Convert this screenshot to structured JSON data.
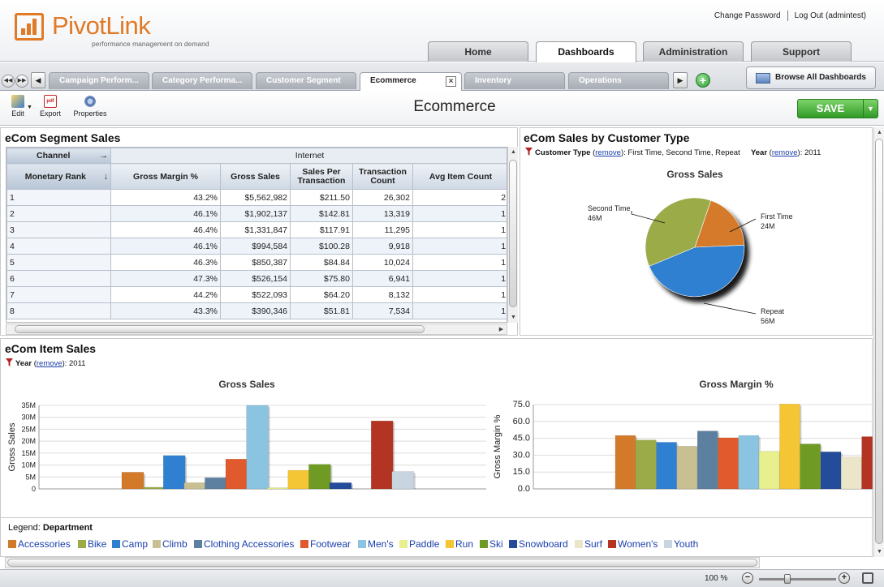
{
  "header": {
    "logo_text": "PivotLink",
    "logo_tagline": "performance management on demand",
    "change_password": "Change Password",
    "logout": "Log Out (admintest)",
    "main_tabs": [
      {
        "label": "Home",
        "active": false
      },
      {
        "label": "Dashboards",
        "active": true
      },
      {
        "label": "Administration",
        "active": false
      },
      {
        "label": "Support",
        "active": false
      }
    ]
  },
  "tabbar": {
    "tabs": [
      {
        "label": "Campaign Perform...",
        "active": false
      },
      {
        "label": "Category Performa...",
        "active": false
      },
      {
        "label": "Customer Segment",
        "active": false
      },
      {
        "label": "Ecommerce",
        "active": true
      },
      {
        "label": "Inventory",
        "active": false
      },
      {
        "label": "Operations",
        "active": false
      }
    ],
    "browse_label": "Browse All Dashboards"
  },
  "toolbar": {
    "edit": "Edit",
    "export": "Export",
    "export_badge": "pdf",
    "properties": "Properties",
    "page_title": "Ecommerce",
    "save": "SAVE"
  },
  "segment_sales": {
    "title": "eCom Segment Sales",
    "channel_label": "Channel",
    "channel_value": "Internet",
    "row_header": "Monetary Rank",
    "columns": [
      "Gross Margin %",
      "Gross Sales",
      "Sales Per Transaction",
      "Transaction Count",
      "Avg Item Count"
    ],
    "rows": [
      {
        "rank": "1",
        "cells": [
          "43.2%",
          "$5,562,982",
          "$211.50",
          "26,302",
          "2"
        ]
      },
      {
        "rank": "2",
        "cells": [
          "46.1%",
          "$1,902,137",
          "$142.81",
          "13,319",
          "1"
        ]
      },
      {
        "rank": "3",
        "cells": [
          "46.4%",
          "$1,331,847",
          "$117.91",
          "11,295",
          "1"
        ]
      },
      {
        "rank": "4",
        "cells": [
          "46.1%",
          "$994,584",
          "$100.28",
          "9,918",
          "1"
        ]
      },
      {
        "rank": "5",
        "cells": [
          "46.3%",
          "$850,387",
          "$84.84",
          "10,024",
          "1"
        ]
      },
      {
        "rank": "6",
        "cells": [
          "47.3%",
          "$526,154",
          "$75.80",
          "6,941",
          "1"
        ]
      },
      {
        "rank": "7",
        "cells": [
          "44.2%",
          "$522,093",
          "$64.20",
          "8,132",
          "1"
        ]
      },
      {
        "rank": "8",
        "cells": [
          "43.3%",
          "$390,346",
          "$51.81",
          "7,534",
          "1"
        ]
      }
    ]
  },
  "customer_type": {
    "title": "eCom Sales by Customer Type",
    "filter1_label": "Customer Type",
    "filter1_values": ": First Time, Second Time, Repeat",
    "filter2_label": "Year",
    "filter2_value": ": 2011",
    "remove": "remove"
  },
  "item_sales": {
    "title": "eCom Item Sales",
    "filter_label": "Year",
    "filter_value": ": 2011",
    "remove": "remove"
  },
  "legend": {
    "label": "Legend: ",
    "dimension": "Department",
    "items": [
      {
        "name": "Accessories",
        "color": "#d37a2a"
      },
      {
        "name": "Bike",
        "color": "#9aab48"
      },
      {
        "name": "Camp",
        "color": "#2f80d0"
      },
      {
        "name": "Climb",
        "color": "#c8c093"
      },
      {
        "name": "Clothing Accessories",
        "color": "#5d7fa0"
      },
      {
        "name": "Footwear",
        "color": "#e05a2d"
      },
      {
        "name": "Men's",
        "color": "#8ac4e0"
      },
      {
        "name": "Paddle",
        "color": "#e7ef8e"
      },
      {
        "name": "Run",
        "color": "#f4c534"
      },
      {
        "name": "Ski",
        "color": "#6f9b24"
      },
      {
        "name": "Snowboard",
        "color": "#254c9a"
      },
      {
        "name": "Surf",
        "color": "#ebe5c9"
      },
      {
        "name": "Women's",
        "color": "#b33422"
      },
      {
        "name": "Youth",
        "color": "#c8d4df"
      }
    ]
  },
  "statusbar": {
    "zoom": "100",
    "zoom_unit": "%"
  },
  "chart_data": [
    {
      "type": "pie",
      "title": "Gross Sales",
      "slices": [
        {
          "name": "First Time",
          "label": "24M",
          "value": 24,
          "color": "#d47a2a"
        },
        {
          "name": "Repeat",
          "label": "56M",
          "value": 56,
          "color": "#2f80d0"
        },
        {
          "name": "Second Time",
          "label": "46M",
          "value": 46,
          "color": "#9aab48"
        }
      ]
    },
    {
      "type": "bar",
      "title": "Gross Sales",
      "ylabel": "Gross Sales",
      "ylim": [
        0,
        35000000
      ],
      "yticks": [
        "0",
        "5M",
        "10M",
        "15M",
        "20M",
        "25M",
        "30M",
        "35M"
      ],
      "grid": true,
      "categories": [
        "Accessories",
        "Bike",
        "Camp",
        "Climb",
        "Clothing Accessories",
        "Footwear",
        "Men's",
        "Paddle",
        "Run",
        "Ski",
        "Snowboard",
        "Surf",
        "Women's",
        "Youth"
      ],
      "values": [
        7000000,
        700000,
        14000000,
        2600000,
        4700000,
        12500000,
        35000000,
        500000,
        7800000,
        10300000,
        2600000,
        0,
        28500000,
        7300000
      ]
    },
    {
      "type": "bar",
      "title": "Gross Margin %",
      "ylabel": "Gross Margin %",
      "ylim": [
        0,
        75
      ],
      "yticks": [
        "0.0",
        "15.0",
        "30.0",
        "45.0",
        "60.0",
        "75.0"
      ],
      "grid": true,
      "categories": [
        "Accessories",
        "Bike",
        "Camp",
        "Climb",
        "Clothing Accessories",
        "Footwear",
        "Men's",
        "Paddle",
        "Run",
        "Ski",
        "Snowboard",
        "Surf",
        "Women's"
      ],
      "values": [
        47.5,
        43.5,
        41.5,
        38,
        51.5,
        45.5,
        47.5,
        33.5,
        75.5,
        40,
        33,
        28.5,
        46.5
      ]
    }
  ]
}
